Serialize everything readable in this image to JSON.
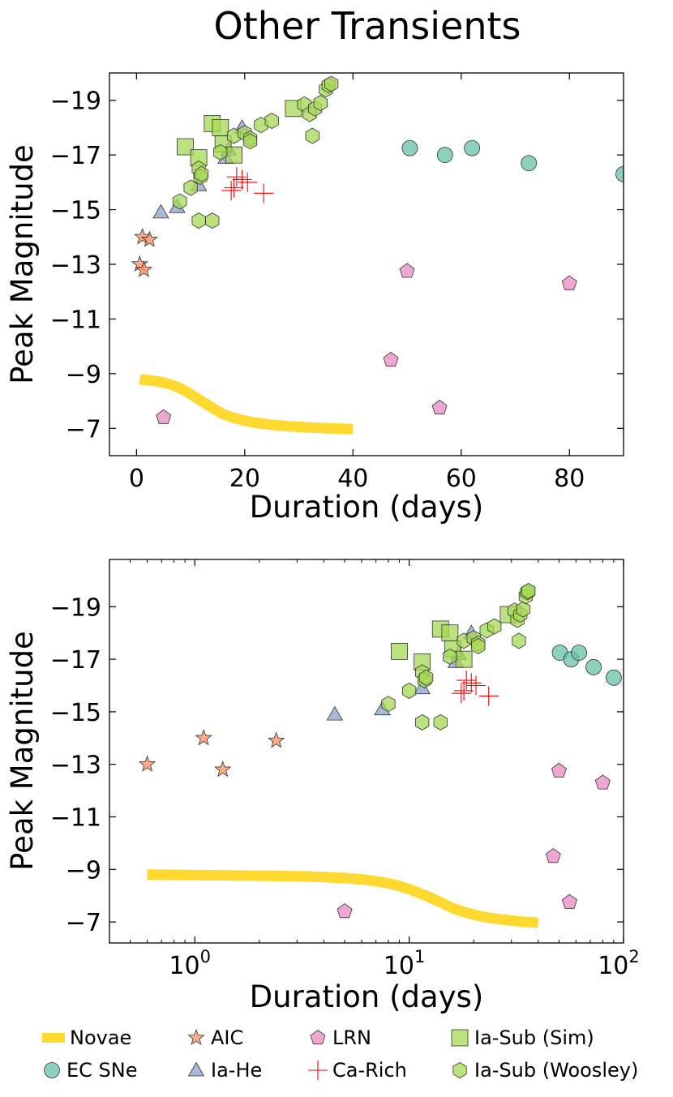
{
  "figure": {
    "title": "Other Transients"
  },
  "colors": {
    "novae": "#ffd92f",
    "ec_sne": "#66c2a5",
    "aic": "#fc8d62",
    "ia_he": "#8da0cb",
    "lrn": "#e78ac3",
    "ca_rich": "#ff0000",
    "ia_sub": "#a6d854"
  },
  "chart_data": [
    {
      "type": "scatter",
      "name": "top",
      "title": "",
      "xlabel": "Duration (days)",
      "ylabel": "Peak Magnitude",
      "xscale": "linear",
      "xlim": [
        -5,
        90
      ],
      "ylim": [
        -6,
        -20
      ],
      "y_inverted": true,
      "xticks": [
        0,
        20,
        40,
        60,
        80
      ],
      "xtick_labels": [
        "0",
        "20",
        "40",
        "60",
        "80"
      ],
      "yticks": [
        -7,
        -9,
        -11,
        -13,
        -15,
        -17,
        -19
      ],
      "ytick_labels": [
        "−7",
        "−9",
        "−11",
        "−13",
        "−15",
        "−17",
        "−19"
      ],
      "grid": false,
      "legend": "none"
    },
    {
      "type": "scatter",
      "name": "bottom",
      "title": "",
      "xlabel": "Duration (days)",
      "ylabel": "Peak Magnitude",
      "xscale": "log",
      "xlim": [
        0.4,
        100
      ],
      "ylim": [
        -6.2,
        -20.8
      ],
      "y_inverted": true,
      "xticks": [
        1,
        10,
        100
      ],
      "xtick_labels": [
        "10",
        "10",
        "10"
      ],
      "xtick_exponents": [
        "0",
        "1",
        "2"
      ],
      "yticks": [
        -7,
        -9,
        -11,
        -13,
        -15,
        -17,
        -19
      ],
      "ytick_labels": [
        "−7",
        "−9",
        "−11",
        "−13",
        "−15",
        "−17",
        "−19"
      ],
      "grid": false,
      "legend": "bottom"
    }
  ],
  "series": [
    {
      "key": "novae",
      "name": "Novae",
      "marker": "line",
      "x": [
        0.6,
        1.1,
        2,
        3,
        4,
        5,
        6,
        7,
        8,
        9,
        10,
        12,
        14,
        16,
        18,
        20,
        22,
        25,
        28,
        31,
        34,
        37,
        40
      ],
      "y": [
        -8.8,
        -8.78,
        -8.76,
        -8.74,
        -8.71,
        -8.67,
        -8.62,
        -8.55,
        -8.47,
        -8.37,
        -8.25,
        -8.0,
        -7.75,
        -7.52,
        -7.38,
        -7.28,
        -7.2,
        -7.13,
        -7.08,
        -7.04,
        -7.01,
        -6.99,
        -6.97
      ]
    },
    {
      "key": "ec_sne",
      "name": "EC SNe",
      "marker": "circle",
      "x": [
        50.5,
        57,
        62,
        72.5,
        90
      ],
      "y": [
        -17.25,
        -17.0,
        -17.25,
        -16.7,
        -16.3
      ]
    },
    {
      "key": "aic",
      "name": "AIC",
      "marker": "star",
      "x": [
        0.6,
        1.1,
        1.35,
        2.4
      ],
      "y": [
        -13.0,
        -14.0,
        -12.8,
        -13.9
      ]
    },
    {
      "key": "ia_he",
      "name": "Ia-He",
      "marker": "triangle",
      "x": [
        4.5,
        7.5,
        11.5,
        16.5,
        17,
        19.5
      ],
      "y": [
        -14.9,
        -15.1,
        -15.9,
        -16.9,
        -17.2,
        -18.0
      ]
    },
    {
      "key": "lrn",
      "name": "LRN",
      "marker": "pentagon",
      "x": [
        5,
        47,
        50,
        56,
        80
      ],
      "y": [
        -7.4,
        -9.5,
        -12.75,
        -7.75,
        -12.3
      ]
    },
    {
      "key": "ca_rich",
      "name": "Ca-Rich",
      "marker": "plus",
      "x": [
        17.5,
        18,
        18.5,
        19.5,
        20.5,
        23.5
      ],
      "y": [
        -15.7,
        -15.8,
        -16.2,
        -16.1,
        -16.0,
        -15.6
      ]
    },
    {
      "key": "ia_sub_sim",
      "name": "Ia-Sub (Sim)",
      "marker": "square",
      "x": [
        9,
        11.5,
        14,
        15.5,
        16,
        18,
        29
      ],
      "y": [
        -17.3,
        -16.9,
        -18.15,
        -18.0,
        -17.4,
        -17.0,
        -18.7
      ]
    },
    {
      "key": "ia_sub_woosley",
      "name": "Ia-Sub (Woosley)",
      "marker": "hexagon",
      "x": [
        8,
        10,
        11.5,
        11.5,
        11.8,
        12,
        14,
        15.5,
        18,
        20,
        21,
        21,
        23,
        25,
        31,
        32,
        32.5,
        33,
        34,
        35,
        35.5,
        36
      ],
      "y": [
        -15.3,
        -15.8,
        -14.6,
        -16.5,
        -16.2,
        -16.3,
        -14.6,
        -17.1,
        -17.7,
        -17.8,
        -17.6,
        -17.5,
        -18.1,
        -18.25,
        -18.85,
        -18.5,
        -17.7,
        -18.7,
        -18.9,
        -19.4,
        -19.55,
        -19.6
      ]
    }
  ]
}
